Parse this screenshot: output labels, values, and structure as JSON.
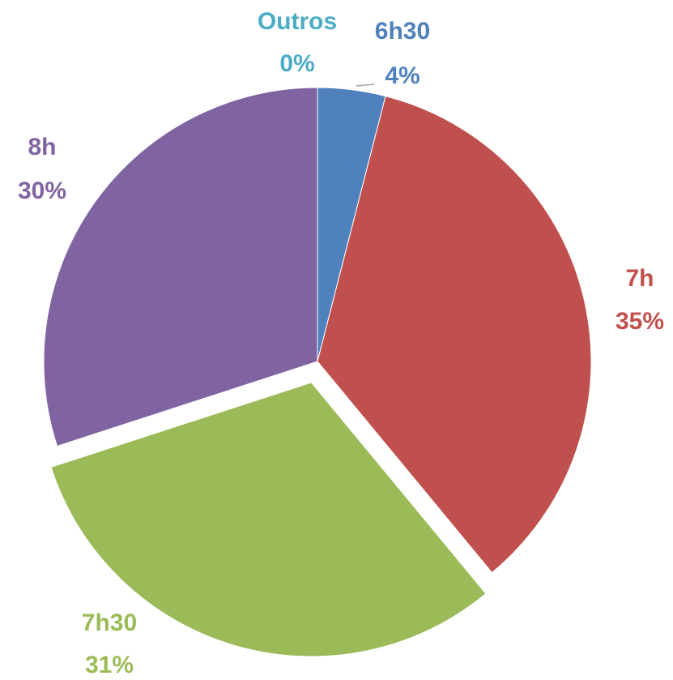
{
  "chart_data": {
    "type": "pie",
    "categories": [
      "6h30",
      "7h",
      "7h30",
      "8h",
      "Outros"
    ],
    "values": [
      4,
      35,
      31,
      30,
      0
    ],
    "value_labels": [
      "4%",
      "35%",
      "31%",
      "30%",
      "0%"
    ],
    "colors": [
      "#4f81bd",
      "#c0504d",
      "#9bbb59",
      "#8064a2",
      "#4bacc6"
    ],
    "explode": [
      0,
      0,
      0.08,
      0,
      0
    ]
  }
}
